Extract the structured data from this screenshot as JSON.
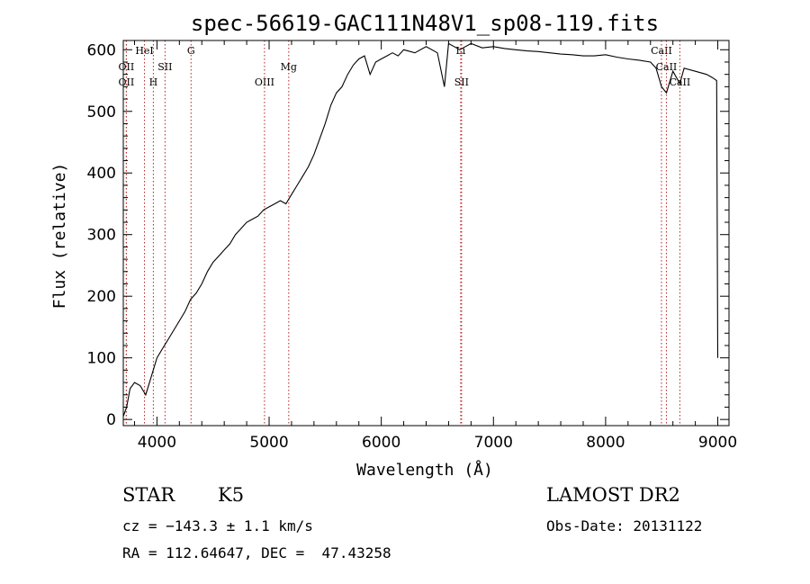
{
  "chart_data": {
    "type": "line",
    "title": "spec-56619-GAC111N48V1_sp08-119.fits",
    "xlabel": "Wavelength (Å)",
    "ylabel": "Flux (relative)",
    "xlim": [
      3700,
      9100
    ],
    "ylim": [
      -10,
      615
    ],
    "xticks": [
      4000,
      5000,
      6000,
      7000,
      8000,
      9000
    ],
    "yticks": [
      0,
      100,
      200,
      300,
      400,
      500,
      600
    ],
    "series": [
      {
        "x": [
          3700,
          3730,
          3760,
          3800,
          3850,
          3900,
          3950,
          4000,
          4050,
          4100,
          4150,
          4200,
          4250,
          4300,
          4350,
          4400,
          4450,
          4500,
          4550,
          4600,
          4650,
          4700,
          4750,
          4800,
          4850,
          4900,
          4950,
          5000,
          5050,
          5100,
          5150,
          5200,
          5250,
          5300,
          5350,
          5400,
          5450,
          5500,
          5550,
          5600,
          5650,
          5700,
          5750,
          5800,
          5850,
          5900,
          5950,
          6000,
          6050,
          6100,
          6150,
          6200,
          6300,
          6400,
          6500,
          6563,
          6600,
          6650,
          6700,
          6750,
          6800,
          6900,
          7000,
          7100,
          7200,
          7300,
          7400,
          7500,
          7600,
          7700,
          7800,
          7900,
          8000,
          8100,
          8200,
          8300,
          8400,
          8450,
          8498,
          8542,
          8600,
          8662,
          8700,
          8800,
          8900,
          8950,
          8990,
          9000
        ],
        "y": [
          5,
          20,
          50,
          60,
          55,
          40,
          70,
          100,
          115,
          130,
          145,
          160,
          175,
          195,
          205,
          220,
          240,
          255,
          265,
          275,
          285,
          300,
          310,
          320,
          325,
          330,
          340,
          345,
          350,
          355,
          350,
          365,
          380,
          395,
          410,
          430,
          455,
          480,
          510,
          530,
          540,
          560,
          575,
          585,
          590,
          560,
          580,
          585,
          590,
          595,
          590,
          600,
          595,
          605,
          595,
          540,
          610,
          605,
          600,
          605,
          610,
          603,
          605,
          602,
          600,
          598,
          597,
          595,
          593,
          592,
          590,
          590,
          592,
          588,
          585,
          583,
          580,
          570,
          540,
          530,
          565,
          545,
          570,
          565,
          560,
          555,
          550,
          100
        ]
      }
    ],
    "line_markers": [
      {
        "label": "OII",
        "x": 3727,
        "row": 1
      },
      {
        "label": "OII",
        "x": 3727,
        "row": 2
      },
      {
        "label": "HeI",
        "x": 3889,
        "row": 0
      },
      {
        "label": "H",
        "x": 3968,
        "row": 2
      },
      {
        "label": "SII",
        "x": 4072,
        "row": 1
      },
      {
        "label": "G",
        "x": 4304,
        "row": 0
      },
      {
        "label": "OIII",
        "x": 4959,
        "row": 2
      },
      {
        "label": "Mg",
        "x": 5175,
        "row": 1
      },
      {
        "label": "Li",
        "x": 6708,
        "row": 0
      },
      {
        "label": "SII",
        "x": 6716,
        "row": 2
      },
      {
        "label": "CaII",
        "x": 8498,
        "row": 0
      },
      {
        "label": "CaII",
        "x": 8542,
        "row": 1
      },
      {
        "label": "CaII",
        "x": 8662,
        "row": 2
      }
    ],
    "grid": false,
    "line_color": "#000000",
    "marker_color": "#b22222"
  },
  "info": {
    "object_class": "STAR",
    "subclass": "K5",
    "survey": "LAMOST DR2",
    "cz": "cz = −143.3 ± 1.1 km/s",
    "obs_date": "Obs-Date: 20131122",
    "radec": "RA = 112.64647, DEC =  47.43258"
  }
}
